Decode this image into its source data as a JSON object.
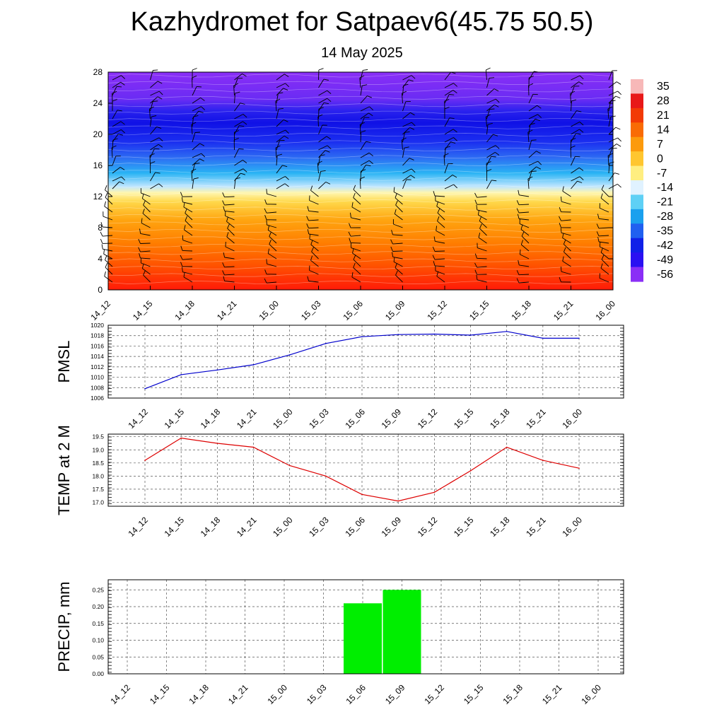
{
  "header": {
    "title": "Kazhydromet for Satpaev6(45.75 50.5)",
    "subtitle": "14 May 2025"
  },
  "chart_data": [
    {
      "type": "heatmap",
      "x_categories": [
        "14_12",
        "14_15",
        "14_18",
        "14_21",
        "15_00",
        "15_03",
        "15_06",
        "15_09",
        "15_12",
        "15_15",
        "15_18",
        "15_21",
        "16_00"
      ],
      "y_ticks": [
        0,
        4,
        8,
        12,
        16,
        20,
        24,
        28
      ],
      "ylim": [
        0,
        28
      ],
      "colorbar_labels": [
        "35",
        "28",
        "21",
        "14",
        "7",
        "0",
        "-7",
        "-14",
        "-21",
        "-28",
        "-35",
        "-42",
        "-49",
        "-56"
      ],
      "colorbar_colors": [
        "#f7b8b8",
        "#e81818",
        "#f23a06",
        "#f96b05",
        "#fc9a0c",
        "#ffc62f",
        "#ffee80",
        "#e0f2ff",
        "#5ed0f5",
        "#1aa0ee",
        "#2060f0",
        "#1020e8",
        "#2a10f2",
        "#8a2ef6"
      ],
      "color_profile": [
        {
          "level": 0,
          "color": "#ff1a08"
        },
        {
          "level": 3,
          "color": "#ff5000"
        },
        {
          "level": 6,
          "color": "#ff7d00"
        },
        {
          "level": 9,
          "color": "#ffa510"
        },
        {
          "level": 11.3,
          "color": "#ffd84a"
        },
        {
          "level": 12.5,
          "color": "#fff6b0"
        },
        {
          "level": 13.3,
          "color": "#bfe6ff"
        },
        {
          "level": 15,
          "color": "#2ab4f4"
        },
        {
          "level": 17,
          "color": "#2d6cf3"
        },
        {
          "level": 19,
          "color": "#1b2ff0"
        },
        {
          "level": 21.5,
          "color": "#1011e6"
        },
        {
          "level": 23,
          "color": "#2a22ee"
        },
        {
          "level": 24.5,
          "color": "#6a2cf4"
        },
        {
          "level": 28,
          "color": "#8a2ef6"
        }
      ],
      "wind_barbs": "wind barbs at each time step and level"
    },
    {
      "type": "line",
      "ylabel": "PMSL",
      "x": [
        "14_12",
        "14_15",
        "14_18",
        "14_21",
        "15_00",
        "15_03",
        "15_06",
        "15_09",
        "15_12",
        "15_15",
        "15_18",
        "15_21",
        "16_00"
      ],
      "values": [
        1007.8,
        1010.5,
        1011.4,
        1012.4,
        1014.3,
        1016.5,
        1017.8,
        1018.2,
        1018.3,
        1018.1,
        1018.8,
        1017.5,
        1017.5
      ],
      "y_ticks": [
        1006,
        1008,
        1010,
        1012,
        1014,
        1016,
        1018,
        1020
      ],
      "ylim": [
        1006,
        1020
      ],
      "color": "#0000cc",
      "grid": true
    },
    {
      "type": "line",
      "ylabel": "TEMP at 2 M",
      "x": [
        "14_12",
        "14_15",
        "14_18",
        "14_21",
        "15_00",
        "15_03",
        "15_06",
        "15_09",
        "15_12",
        "15_15",
        "15_18",
        "15_21",
        "16_00"
      ],
      "values": [
        18.6,
        19.45,
        19.25,
        19.1,
        18.4,
        18.0,
        17.3,
        17.05,
        17.38,
        18.2,
        19.1,
        18.6,
        18.3
      ],
      "y_ticks": [
        "17.0",
        "17.5",
        "18.0",
        "18.5",
        "19.0",
        "19.5"
      ],
      "ylim": [
        16.85,
        19.6
      ],
      "color": "#dd0000",
      "grid": true
    },
    {
      "type": "bar",
      "ylabel": "PRECIP, mm",
      "categories": [
        "14_12",
        "14_15",
        "14_18",
        "14_21",
        "15_00",
        "15_03",
        "15_06",
        "15_09",
        "15_12",
        "15_15",
        "15_18",
        "15_21",
        "16_00"
      ],
      "values": [
        0,
        0,
        0,
        0,
        0,
        0,
        0.21,
        0.25,
        0,
        0,
        0,
        0,
        0
      ],
      "y_ticks": [
        "0.00",
        "0.05",
        "0.10",
        "0.15",
        "0.20",
        "0.25"
      ],
      "ylim": [
        0,
        0.28
      ],
      "color": "#00ee00",
      "grid": true
    }
  ]
}
